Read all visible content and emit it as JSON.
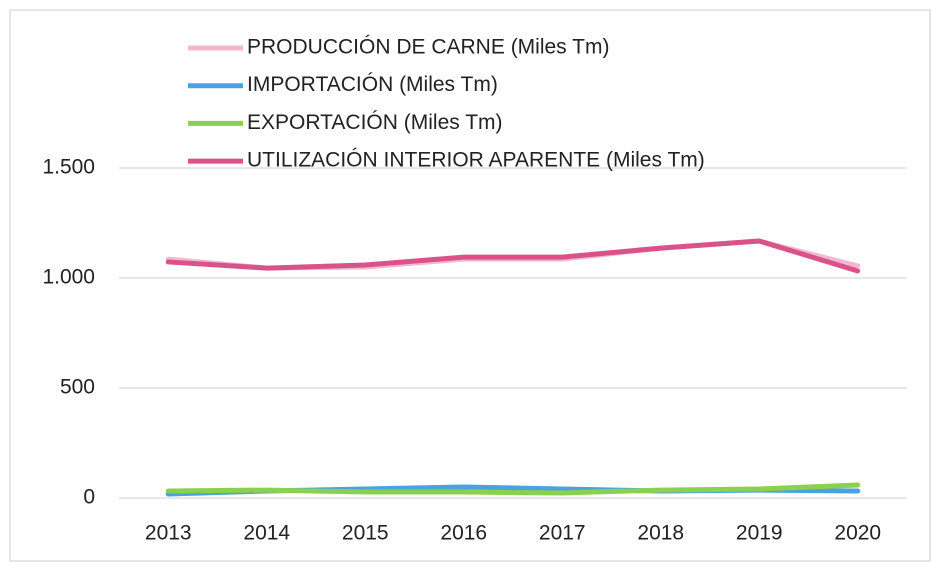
{
  "chart_data": {
    "type": "line",
    "categories": [
      "2013",
      "2014",
      "2015",
      "2016",
      "2017",
      "2018",
      "2019",
      "2020"
    ],
    "series": [
      {
        "name": "PRODUCCIÓN DE CARNE (Miles Tm)",
        "color": "#f2b8cf",
        "values": [
          1086,
          1045,
          1050,
          1086,
          1086,
          1136,
          1168,
          1055
        ]
      },
      {
        "name": "IMPORTACIÓN (Miles Tm)",
        "color": "#4aa3df",
        "values": [
          18,
          32,
          41,
          50,
          41,
          32,
          36,
          32
        ]
      },
      {
        "name": "EXPORTACIÓN (Miles Tm)",
        "color": "#8cd050",
        "values": [
          32,
          36,
          27,
          27,
          23,
          36,
          41,
          59
        ]
      },
      {
        "name": "UTILIZACIÓN INTERIOR APARENTE (Miles Tm)",
        "color": "#d9538a",
        "values": [
          1073,
          1045,
          1059,
          1095,
          1095,
          1136,
          1168,
          1032
        ]
      }
    ],
    "ylim": [
      0,
      1500
    ],
    "yticks": [
      0,
      500,
      {
        "value": 1000,
        "label": "1.000"
      },
      {
        "value": 1500,
        "label": "1.500"
      }
    ],
    "grid": true,
    "legend": "top-left"
  }
}
